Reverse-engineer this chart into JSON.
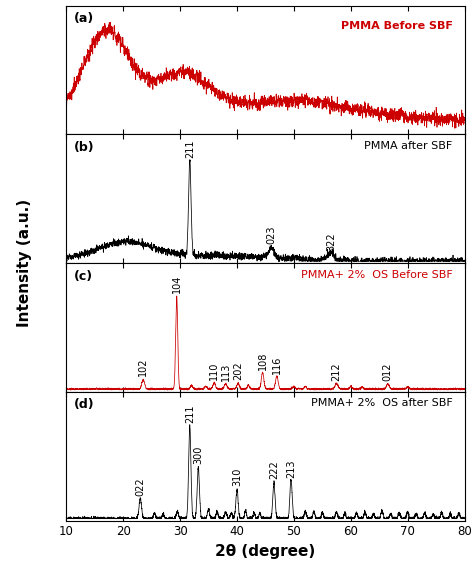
{
  "xlim": [
    10,
    80
  ],
  "xlabel": "2θ (degree)",
  "ylabel": "Intensity (a.u.)",
  "panel_labels": [
    "(a)",
    "(b)",
    "(c)",
    "(d)"
  ],
  "panel_a": {
    "label": "PMMA Before SBF",
    "color": "#cc0000",
    "label_color": "#cc0000"
  },
  "panel_b": {
    "label": "PMMA after SBF",
    "color": "#000000",
    "label_color": "#000000",
    "peaks": [
      {
        "x": 31.7,
        "label": "211",
        "amp": 1.0,
        "sig": 0.22
      },
      {
        "x": 46.0,
        "label": "023",
        "amp": 0.1,
        "sig": 0.5
      },
      {
        "x": 56.5,
        "label": "322",
        "amp": 0.09,
        "sig": 0.5
      }
    ]
  },
  "panel_c": {
    "label": "PMMA+ 2%  OS Before SBF",
    "color": "#cc0000",
    "label_color": "#cc0000",
    "peaks": [
      {
        "x": 23.5,
        "label": "102",
        "amp": 0.1,
        "sig": 0.25
      },
      {
        "x": 29.4,
        "label": "104",
        "amp": 1.0,
        "sig": 0.18
      },
      {
        "x": 36.0,
        "label": "110",
        "amp": 0.07,
        "sig": 0.22
      },
      {
        "x": 38.0,
        "label": "113",
        "amp": 0.06,
        "sig": 0.22
      },
      {
        "x": 40.2,
        "label": "202",
        "amp": 0.06,
        "sig": 0.22
      },
      {
        "x": 44.5,
        "label": "108",
        "amp": 0.18,
        "sig": 0.22
      },
      {
        "x": 47.0,
        "label": "116",
        "amp": 0.14,
        "sig": 0.22
      },
      {
        "x": 57.5,
        "label": "212",
        "amp": 0.06,
        "sig": 0.25
      },
      {
        "x": 66.5,
        "label": "012",
        "amp": 0.05,
        "sig": 0.25
      }
    ]
  },
  "panel_d": {
    "label": "PMMA+ 2%  OS after SBF",
    "color": "#000000",
    "label_color": "#000000",
    "peaks": [
      {
        "x": 23.0,
        "label": "022",
        "amp": 0.22,
        "sig": 0.22
      },
      {
        "x": 31.7,
        "label": "211",
        "amp": 1.0,
        "sig": 0.2
      },
      {
        "x": 33.2,
        "label": "300",
        "amp": 0.55,
        "sig": 0.2
      },
      {
        "x": 40.0,
        "label": "310",
        "amp": 0.32,
        "sig": 0.2
      },
      {
        "x": 46.5,
        "label": "222",
        "amp": 0.38,
        "sig": 0.2
      },
      {
        "x": 49.5,
        "label": "213",
        "amp": 0.42,
        "sig": 0.2
      }
    ]
  },
  "seed": 42
}
